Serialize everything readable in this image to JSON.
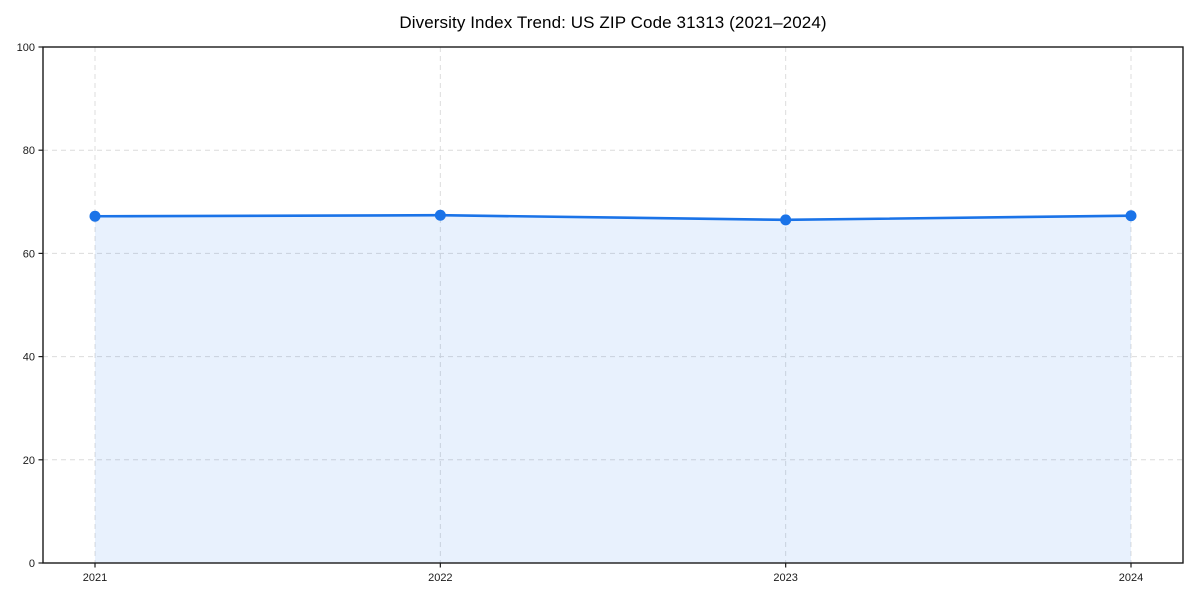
{
  "chart_data": {
    "type": "area",
    "title": "Diversity Index Trend: US ZIP Code 31313 (2021–2024)",
    "x_categories": [
      "2021",
      "2022",
      "2023",
      "2024"
    ],
    "series": [
      {
        "name": "Diversity Index",
        "values": [
          67.2,
          67.4,
          66.5,
          67.3
        ]
      }
    ],
    "xlabel": "",
    "ylabel": "",
    "ylim": [
      0,
      100
    ],
    "yticks": [
      0,
      20,
      40,
      60,
      80,
      100
    ],
    "grid": "dashed-both-axes",
    "legend": "none",
    "marker": "filled-circle",
    "colors": {
      "line": "#1a73e8",
      "marker": "#1a73e8",
      "fill": "#1a73e8",
      "fill_opacity": 0.1,
      "grid": "#dcdcdc",
      "spine": "#1a1a1a",
      "tick_label": "#1a1a1a",
      "title": "#000000",
      "background": "#ffffff"
    }
  }
}
